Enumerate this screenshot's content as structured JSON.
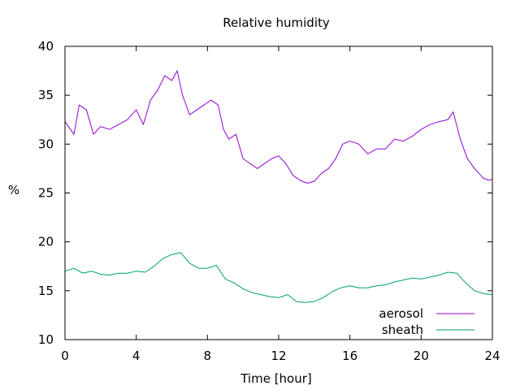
{
  "chart_data": {
    "type": "line",
    "title": "Relative humidity",
    "xlabel": "Time [hour]",
    "ylabel": "%",
    "xlim": [
      0,
      24
    ],
    "ylim": [
      10,
      40
    ],
    "xticks": [
      0,
      4,
      8,
      12,
      16,
      20,
      24
    ],
    "yticks": [
      10,
      15,
      20,
      25,
      30,
      35,
      40
    ],
    "grid": false,
    "legend_position": "bottom-right",
    "series": [
      {
        "name": "aerosol",
        "color": "#9400d3",
        "x": [
          0,
          0.5,
          0.8,
          1.2,
          1.6,
          2.0,
          2.5,
          3.0,
          3.5,
          4.0,
          4.4,
          4.8,
          5.2,
          5.6,
          6.0,
          6.3,
          6.6,
          7.0,
          7.4,
          7.8,
          8.2,
          8.6,
          8.9,
          9.2,
          9.6,
          10.0,
          10.4,
          10.8,
          11.2,
          11.6,
          12.0,
          12.4,
          12.8,
          13.2,
          13.6,
          14.0,
          14.4,
          14.8,
          15.2,
          15.6,
          16.0,
          16.5,
          17.0,
          17.5,
          18.0,
          18.5,
          19.0,
          19.5,
          20.0,
          20.5,
          21.0,
          21.5,
          21.8,
          22.2,
          22.6,
          23.0,
          23.5,
          23.8,
          24.0
        ],
        "y": [
          32.3,
          31.0,
          34.0,
          33.5,
          31.0,
          31.8,
          31.5,
          32.0,
          32.5,
          33.5,
          32.0,
          34.5,
          35.5,
          37.0,
          36.5,
          37.5,
          35.0,
          33.0,
          33.5,
          34.0,
          34.5,
          34.0,
          31.5,
          30.5,
          31.0,
          28.5,
          28.0,
          27.5,
          28.0,
          28.5,
          28.8,
          28.0,
          26.8,
          26.3,
          26.0,
          26.2,
          27.0,
          27.5,
          28.5,
          30.0,
          30.3,
          30.0,
          29.0,
          29.5,
          29.5,
          30.5,
          30.3,
          30.8,
          31.5,
          32.0,
          32.3,
          32.5,
          33.3,
          30.5,
          28.5,
          27.5,
          26.5,
          26.3,
          26.4
        ]
      },
      {
        "name": "sheath",
        "color": "#009e73",
        "x": [
          0,
          0.5,
          1.0,
          1.5,
          2.0,
          2.5,
          3.0,
          3.5,
          4.0,
          4.5,
          5.0,
          5.5,
          6.0,
          6.5,
          7.0,
          7.5,
          8.0,
          8.5,
          9.0,
          9.5,
          10.0,
          10.5,
          11.0,
          11.5,
          12.0,
          12.5,
          13.0,
          13.5,
          14.0,
          14.5,
          15.0,
          15.5,
          16.0,
          16.5,
          17.0,
          17.5,
          18.0,
          18.5,
          19.0,
          19.5,
          20.0,
          20.5,
          21.0,
          21.5,
          22.0,
          22.5,
          23.0,
          23.5,
          24.0
        ],
        "y": [
          17.0,
          17.3,
          16.8,
          17.0,
          16.7,
          16.6,
          16.8,
          16.8,
          17.0,
          16.9,
          17.5,
          18.3,
          18.7,
          18.9,
          17.8,
          17.3,
          17.3,
          17.6,
          16.2,
          15.8,
          15.2,
          14.8,
          14.6,
          14.4,
          14.3,
          14.6,
          13.9,
          13.8,
          13.9,
          14.3,
          14.9,
          15.3,
          15.5,
          15.3,
          15.3,
          15.5,
          15.6,
          15.9,
          16.1,
          16.3,
          16.2,
          16.4,
          16.6,
          16.9,
          16.8,
          15.8,
          15.0,
          14.7,
          14.6
        ]
      }
    ]
  }
}
